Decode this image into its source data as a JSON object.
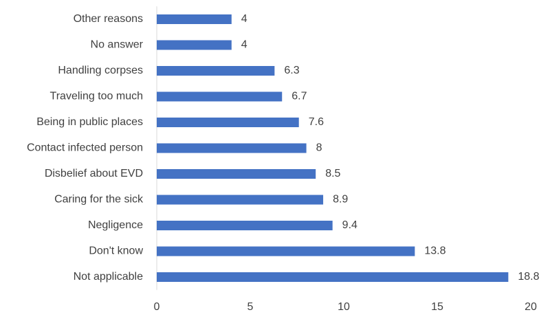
{
  "chart_data": {
    "type": "hbar",
    "categories": [
      "Other reasons",
      "No answer",
      "Handling corpses",
      "Traveling too much",
      "Being in public places",
      "Contact infected person",
      "Disbelief about EVD",
      "Caring for the sick",
      "Negligence",
      "Don't know",
      "Not applicable"
    ],
    "values": [
      4,
      4,
      6.3,
      6.7,
      7.6,
      8,
      8.5,
      8.9,
      9.4,
      13.8,
      18.8
    ],
    "color": "#4472c4",
    "xlim": [
      0,
      20
    ],
    "xticks": [
      0,
      5,
      10,
      15,
      20
    ],
    "grid": false,
    "data_labels": true
  }
}
